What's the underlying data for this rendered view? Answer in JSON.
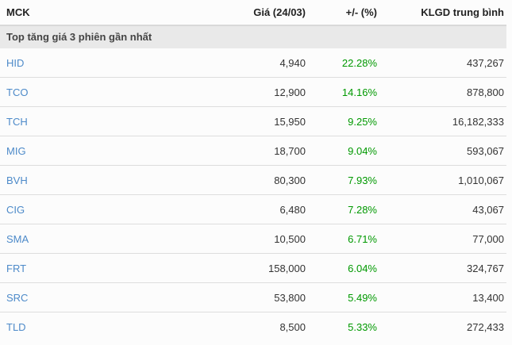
{
  "table": {
    "columns": [
      {
        "label": "MCK",
        "align": "left"
      },
      {
        "label": "Giá (24/03)",
        "align": "right"
      },
      {
        "label": "+/- (%)",
        "align": "right"
      },
      {
        "label": "KLGD trung bình",
        "align": "right"
      }
    ],
    "section_title": "Top tăng giá 3 phiên gần nhất",
    "rows": [
      {
        "symbol": "HID",
        "price": "4,940",
        "change": "22.28%",
        "volume": "437,267"
      },
      {
        "symbol": "TCO",
        "price": "12,900",
        "change": "14.16%",
        "volume": "878,800"
      },
      {
        "symbol": "TCH",
        "price": "15,950",
        "change": "9.25%",
        "volume": "16,182,333"
      },
      {
        "symbol": "MIG",
        "price": "18,700",
        "change": "9.04%",
        "volume": "593,067"
      },
      {
        "symbol": "BVH",
        "price": "80,300",
        "change": "7.93%",
        "volume": "1,010,067"
      },
      {
        "symbol": "CIG",
        "price": "6,480",
        "change": "7.28%",
        "volume": "43,067"
      },
      {
        "symbol": "SMA",
        "price": "10,500",
        "change": "6.71%",
        "volume": "77,000"
      },
      {
        "symbol": "FRT",
        "price": "158,000",
        "change": "6.04%",
        "volume": "324,767"
      },
      {
        "symbol": "SRC",
        "price": "53,800",
        "change": "5.49%",
        "volume": "13,400"
      },
      {
        "symbol": "TLD",
        "price": "8,500",
        "change": "5.33%",
        "volume": "272,433"
      }
    ]
  },
  "colors": {
    "symbol_link": "#4d8ac9",
    "positive_change": "#009900",
    "section_background": "#e9e9e9",
    "section_top_border": "#d9d9d9",
    "row_border": "#dddddd",
    "body_text": "#333333",
    "header_text": "#222222",
    "page_background": "#fcfcfc"
  }
}
